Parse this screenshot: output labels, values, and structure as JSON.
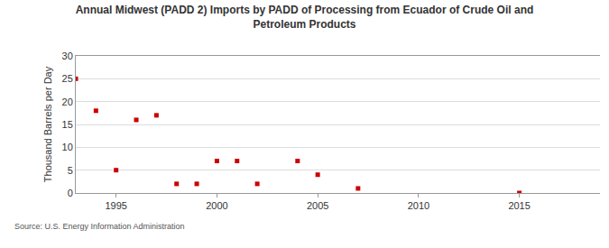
{
  "chart_data": {
    "type": "scatter",
    "title": "Annual Midwest (PADD 2) Imports by PADD of Processing from Ecuador of Crude Oil and\nPetroleum Products",
    "y_label": "Thousand Barrels per Day",
    "source": "Source: U.S. Energy Information Administration",
    "x": [
      1993,
      1994,
      1995,
      1996,
      1997,
      1998,
      1999,
      2000,
      2001,
      2002,
      2004,
      2005,
      2007,
      2015
    ],
    "values": [
      25,
      18,
      5,
      16,
      17,
      2,
      2,
      7,
      7,
      2,
      7,
      4,
      1,
      0
    ],
    "color": "#cc0000",
    "marker": "square",
    "xlim": [
      1993,
      2019
    ],
    "xticks": [
      1995,
      2000,
      2005,
      2010,
      2015
    ],
    "ylim": [
      0,
      30
    ],
    "yticks": [
      0,
      5,
      10,
      15,
      20,
      25,
      30
    ],
    "grid": true
  }
}
